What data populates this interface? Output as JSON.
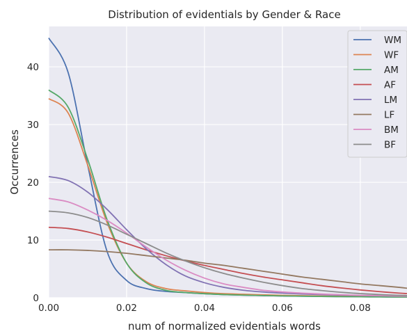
{
  "chart_data": {
    "type": "line",
    "title": "Distribution of evidentials by Gender & Race",
    "xlabel": "num of normalized evidentials words",
    "ylabel": "Occurrences",
    "xlim": [
      0.0,
      0.092
    ],
    "ylim": [
      0,
      47
    ],
    "grid": true,
    "legend_position": "top-right",
    "x_ticks": [
      {
        "value": 0.0,
        "label": "0.00"
      },
      {
        "value": 0.02,
        "label": "0.02"
      },
      {
        "value": 0.04,
        "label": "0.04"
      },
      {
        "value": 0.06,
        "label": "0.06"
      },
      {
        "value": 0.08,
        "label": "0.08"
      }
    ],
    "y_ticks": [
      {
        "value": 0,
        "label": "0"
      },
      {
        "value": 10,
        "label": "10"
      },
      {
        "value": 20,
        "label": "20"
      },
      {
        "value": 30,
        "label": "30"
      },
      {
        "value": 40,
        "label": "40"
      }
    ],
    "x": [
      0.0,
      0.005,
      0.01,
      0.015,
      0.02,
      0.025,
      0.03,
      0.035,
      0.04,
      0.045,
      0.05,
      0.055,
      0.06,
      0.065,
      0.07,
      0.075,
      0.08,
      0.085,
      0.09,
      0.092
    ],
    "series": [
      {
        "name": "WM",
        "color": "#4c72b0",
        "values": [
          45.0,
          39.0,
          23.0,
          8.0,
          3.0,
          1.6,
          1.1,
          0.9,
          0.7,
          0.55,
          0.45,
          0.38,
          0.32,
          0.27,
          0.23,
          0.2,
          0.17,
          0.15,
          0.13,
          0.12
        ]
      },
      {
        "name": "WF",
        "color": "#dd8452",
        "values": [
          34.5,
          32.0,
          23.0,
          13.0,
          6.0,
          2.8,
          1.6,
          1.2,
          0.9,
          0.7,
          0.6,
          0.5,
          0.42,
          0.36,
          0.3,
          0.26,
          0.22,
          0.19,
          0.16,
          0.15
        ]
      },
      {
        "name": "AM",
        "color": "#55a868",
        "values": [
          36.0,
          33.0,
          24.0,
          13.5,
          6.0,
          2.6,
          1.3,
          0.9,
          0.7,
          0.55,
          0.45,
          0.38,
          0.32,
          0.27,
          0.23,
          0.2,
          0.17,
          0.15,
          0.13,
          0.12
        ]
      },
      {
        "name": "AF",
        "color": "#c44e52",
        "values": [
          12.2,
          12.0,
          11.4,
          10.5,
          9.4,
          8.3,
          7.3,
          6.4,
          5.6,
          4.9,
          4.2,
          3.6,
          3.1,
          2.6,
          2.1,
          1.7,
          1.35,
          1.05,
          0.8,
          0.72
        ]
      },
      {
        "name": "LM",
        "color": "#8172b3",
        "values": [
          21.0,
          20.3,
          18.3,
          15.3,
          11.8,
          8.5,
          5.8,
          3.8,
          2.6,
          1.8,
          1.3,
          1.0,
          0.8,
          0.65,
          0.55,
          0.46,
          0.4,
          0.35,
          0.3,
          0.28
        ]
      },
      {
        "name": "LF",
        "color": "#937860",
        "values": [
          8.3,
          8.3,
          8.2,
          8.0,
          7.7,
          7.3,
          6.9,
          6.5,
          6.0,
          5.6,
          5.1,
          4.6,
          4.1,
          3.6,
          3.2,
          2.8,
          2.4,
          2.1,
          1.8,
          1.65
        ]
      },
      {
        "name": "BM",
        "color": "#da8bc3",
        "values": [
          17.2,
          16.6,
          15.2,
          13.4,
          11.2,
          8.8,
          6.6,
          4.8,
          3.4,
          2.4,
          1.8,
          1.3,
          1.0,
          0.8,
          0.65,
          0.52,
          0.42,
          0.35,
          0.29,
          0.27
        ]
      },
      {
        "name": "BF",
        "color": "#8c8c8c",
        "values": [
          15.0,
          14.7,
          13.9,
          12.6,
          11.0,
          9.4,
          7.8,
          6.4,
          5.2,
          4.2,
          3.4,
          2.7,
          2.1,
          1.6,
          1.25,
          0.95,
          0.72,
          0.55,
          0.42,
          0.38
        ]
      }
    ]
  }
}
